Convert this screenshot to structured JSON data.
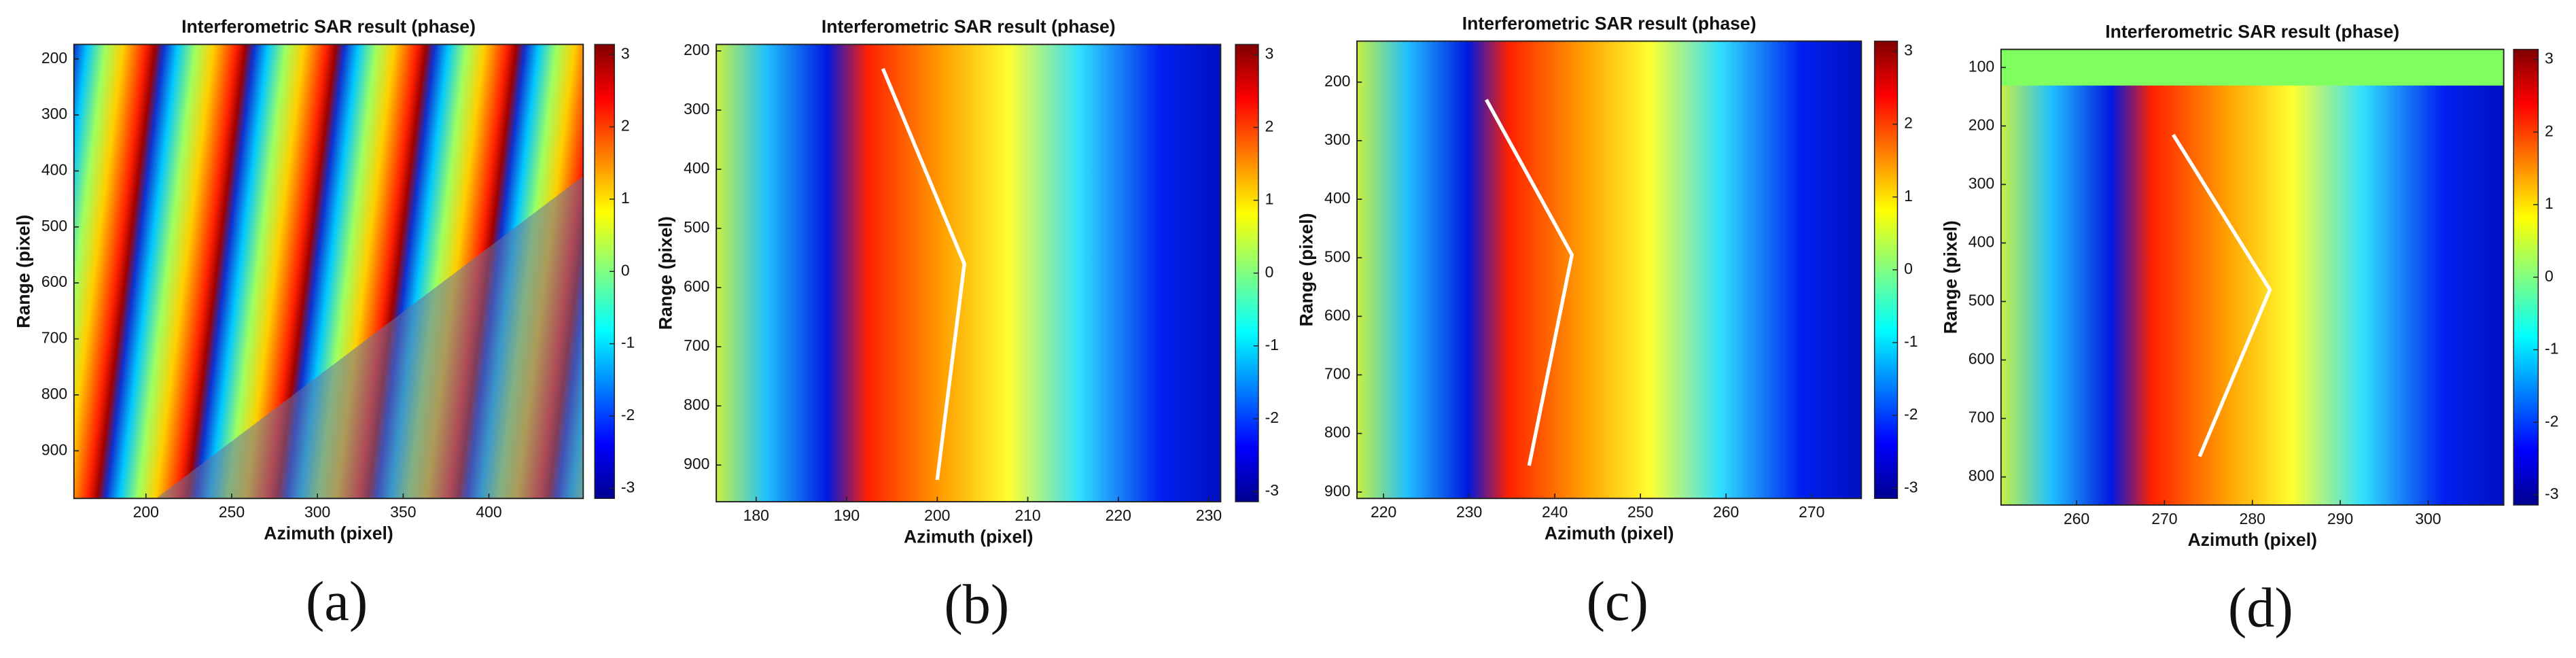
{
  "chart_data": [
    {
      "type": "heatmap",
      "title": "Interferometric SAR result (phase)",
      "xlabel": "Azimuth (pixel)",
      "ylabel": "Range (pixel)",
      "label": "(a)",
      "xlim": [
        158,
        455
      ],
      "ylim": [
        174,
        985
      ],
      "xticks": [
        200,
        250,
        300,
        350,
        400
      ],
      "yticks": [
        200,
        300,
        400,
        500,
        600,
        700,
        800,
        900
      ],
      "clim": [
        -3.14,
        3.14
      ],
      "cticks": [
        -3,
        -2,
        -1,
        0,
        1,
        2,
        3
      ],
      "colormap": "jet"
    },
    {
      "type": "heatmap",
      "title": "Interferometric SAR result (phase)",
      "xlabel": "Azimuth (pixel)",
      "ylabel": "Range (pixel)",
      "label": "(b)",
      "xlim": [
        175.6,
        231.3
      ],
      "ylim": [
        189,
        962
      ],
      "xticks": [
        180,
        190,
        200,
        210,
        220,
        230
      ],
      "yticks": [
        200,
        300,
        400,
        500,
        600,
        700,
        800,
        900
      ],
      "clim": [
        -3.14,
        3.14
      ],
      "cticks": [
        -3,
        -2,
        -1,
        0,
        1,
        2,
        3
      ],
      "colormap": "jet",
      "line": {
        "x": [
          194,
          203,
          200
        ],
        "y": [
          230,
          560,
          925
        ],
        "color": "#ffffff"
      }
    },
    {
      "type": "heatmap",
      "title": "Interferometric SAR result (phase)",
      "xlabel": "Azimuth (pixel)",
      "ylabel": "Range (pixel)",
      "label": "(c)",
      "xlim": [
        216.9,
        275.8
      ],
      "ylim": [
        130,
        911
      ],
      "xticks": [
        220,
        230,
        240,
        250,
        260,
        270
      ],
      "yticks": [
        200,
        300,
        400,
        500,
        600,
        700,
        800,
        900
      ],
      "clim": [
        -3.14,
        3.14
      ],
      "cticks": [
        -3,
        -2,
        -1,
        0,
        1,
        2,
        3
      ],
      "colormap": "jet",
      "line": {
        "x": [
          232,
          242,
          237
        ],
        "y": [
          230,
          495,
          855
        ],
        "color": "#ffffff"
      }
    },
    {
      "type": "heatmap",
      "title": "Interferometric SAR result (phase)",
      "xlabel": "Azimuth (pixel)",
      "ylabel": "Range (pixel)",
      "label": "(d)",
      "xlim": [
        251.4,
        308.6
      ],
      "ylim": [
        69,
        848
      ],
      "xticks": [
        260,
        270,
        280,
        290,
        300
      ],
      "yticks": [
        100,
        200,
        300,
        400,
        500,
        600,
        700,
        800
      ],
      "clim": [
        -3.14,
        3.14
      ],
      "cticks": [
        -3,
        -2,
        -1,
        0,
        1,
        2,
        3
      ],
      "colormap": "jet",
      "line": {
        "x": [
          271,
          282,
          274
        ],
        "y": [
          215,
          480,
          765
        ],
        "color": "#ffffff"
      }
    }
  ]
}
